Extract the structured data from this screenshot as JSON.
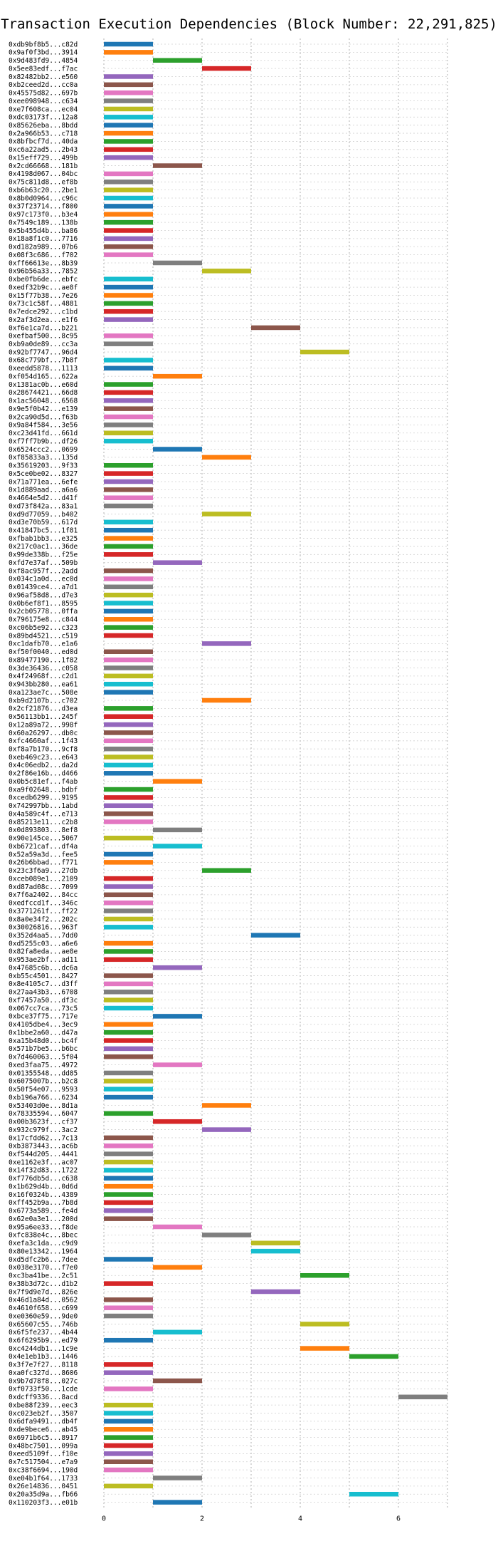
{
  "chart_data": {
    "type": "bar",
    "orientation": "horizontal",
    "title": "Transaction Execution Dependencies (Block Number: 22,291,825)",
    "xlabel": "",
    "ylabel": "",
    "xlim": [
      0,
      7
    ],
    "xticks": [
      0,
      2,
      4,
      6
    ],
    "grid": "x-dotted",
    "legend": "none",
    "palette": [
      "#1f77b4",
      "#ff7f0e",
      "#2ca02c",
      "#d62728",
      "#9467bd",
      "#8c564b",
      "#e377c2",
      "#7f7f7f",
      "#bcbd22",
      "#17becf"
    ],
    "bars": [
      {
        "label": "0xdb9bf8b5...c82d",
        "start": 0,
        "end": 1
      },
      {
        "label": "0x9af0f3bd...3914",
        "start": 0,
        "end": 1
      },
      {
        "label": "0x9d483fd9...4854",
        "start": 1,
        "end": 2
      },
      {
        "label": "0x5ee83edf...f7ac",
        "start": 2,
        "end": 3
      },
      {
        "label": "0x82482bb2...e560",
        "start": 0,
        "end": 1
      },
      {
        "label": "0xb2ceed2d...cc0a",
        "start": 0,
        "end": 1
      },
      {
        "label": "0x45575d82...697b",
        "start": 0,
        "end": 1
      },
      {
        "label": "0xee098948...c634",
        "start": 0,
        "end": 1
      },
      {
        "label": "0xe7f608ca...ec04",
        "start": 0,
        "end": 1
      },
      {
        "label": "0xdc03173f...12a8",
        "start": 0,
        "end": 1
      },
      {
        "label": "0x85626eba...8bdd",
        "start": 0,
        "end": 1
      },
      {
        "label": "0x2a966b53...c718",
        "start": 0,
        "end": 1
      },
      {
        "label": "0x8bfbcf7d...40da",
        "start": 0,
        "end": 1
      },
      {
        "label": "0xc6a22ad5...2b43",
        "start": 0,
        "end": 1
      },
      {
        "label": "0x15eff729...499b",
        "start": 0,
        "end": 1
      },
      {
        "label": "0x2cd66668...181b",
        "start": 1,
        "end": 2
      },
      {
        "label": "0x4198d067...04bc",
        "start": 0,
        "end": 1
      },
      {
        "label": "0x75c811d8...ef8b",
        "start": 0,
        "end": 1
      },
      {
        "label": "0xb6b63c20...2be1",
        "start": 0,
        "end": 1
      },
      {
        "label": "0x8b0d0964...c96c",
        "start": 0,
        "end": 1
      },
      {
        "label": "0x37f23714...f800",
        "start": 0,
        "end": 1
      },
      {
        "label": "0x97c173f0...b3e4",
        "start": 0,
        "end": 1
      },
      {
        "label": "0x7549c189...138b",
        "start": 0,
        "end": 1
      },
      {
        "label": "0x5b455d4b...ba86",
        "start": 0,
        "end": 1
      },
      {
        "label": "0x18a8f1c0...7716",
        "start": 0,
        "end": 1
      },
      {
        "label": "0xd182a989...07b6",
        "start": 0,
        "end": 1
      },
      {
        "label": "0x08f3c686...f702",
        "start": 0,
        "end": 1
      },
      {
        "label": "0xff66613e...8b39",
        "start": 1,
        "end": 2
      },
      {
        "label": "0x96b56a33...7852",
        "start": 2,
        "end": 3
      },
      {
        "label": "0xbe0fb6de...ebfc",
        "start": 0,
        "end": 1
      },
      {
        "label": "0xedf32b9c...ae8f",
        "start": 0,
        "end": 1
      },
      {
        "label": "0x15f77b38...7e26",
        "start": 0,
        "end": 1
      },
      {
        "label": "0x73c1c58f...4881",
        "start": 0,
        "end": 1
      },
      {
        "label": "0x7edce292...c1bd",
        "start": 0,
        "end": 1
      },
      {
        "label": "0x2af3d2ea...e1f6",
        "start": 0,
        "end": 1
      },
      {
        "label": "0xf6e1ca7d...b221",
        "start": 3,
        "end": 4
      },
      {
        "label": "0xefbaf500...8c95",
        "start": 0,
        "end": 1
      },
      {
        "label": "0xb9a0de89...cc3a",
        "start": 0,
        "end": 1
      },
      {
        "label": "0x92bf7747...96d4",
        "start": 4,
        "end": 5
      },
      {
        "label": "0x68c779bf...7b8f",
        "start": 0,
        "end": 1
      },
      {
        "label": "0xeedd5878...1113",
        "start": 0,
        "end": 1
      },
      {
        "label": "0xf054d165...622a",
        "start": 1,
        "end": 2
      },
      {
        "label": "0x1381ac0b...e60d",
        "start": 0,
        "end": 1
      },
      {
        "label": "0x28674421...66d8",
        "start": 0,
        "end": 1
      },
      {
        "label": "0x1ac56048...6568",
        "start": 0,
        "end": 1
      },
      {
        "label": "0x9e5f0b42...e139",
        "start": 0,
        "end": 1
      },
      {
        "label": "0x2ca90d5d...f63b",
        "start": 0,
        "end": 1
      },
      {
        "label": "0x9a84f584...3e56",
        "start": 0,
        "end": 1
      },
      {
        "label": "0xc23d41fd...661d",
        "start": 0,
        "end": 1
      },
      {
        "label": "0xf7ff7b9b...df26",
        "start": 0,
        "end": 1
      },
      {
        "label": "0x6524ccc2...0699",
        "start": 1,
        "end": 2
      },
      {
        "label": "0xf85833a3...135d",
        "start": 2,
        "end": 3
      },
      {
        "label": "0x35619203...9f33",
        "start": 0,
        "end": 1
      },
      {
        "label": "0x5ce0be02...8327",
        "start": 0,
        "end": 1
      },
      {
        "label": "0x71a771ea...6efe",
        "start": 0,
        "end": 1
      },
      {
        "label": "0x1d889aad...a6a6",
        "start": 0,
        "end": 1
      },
      {
        "label": "0x4664e5d2...d41f",
        "start": 0,
        "end": 1
      },
      {
        "label": "0xd73f842a...83a1",
        "start": 0,
        "end": 1
      },
      {
        "label": "0xd9d77059...b402",
        "start": 2,
        "end": 3
      },
      {
        "label": "0xd3e70b59...617d",
        "start": 0,
        "end": 1
      },
      {
        "label": "0x41847bc5...1f81",
        "start": 0,
        "end": 1
      },
      {
        "label": "0xfbab1bb3...e325",
        "start": 0,
        "end": 1
      },
      {
        "label": "0x217c0ac1...36de",
        "start": 0,
        "end": 1
      },
      {
        "label": "0x99de338b...f25e",
        "start": 0,
        "end": 1
      },
      {
        "label": "0xfd7e37af...509b",
        "start": 1,
        "end": 2
      },
      {
        "label": "0xf8ac957f...2add",
        "start": 0,
        "end": 1
      },
      {
        "label": "0x034c1a0d...ec0d",
        "start": 0,
        "end": 1
      },
      {
        "label": "0x01439ce4...a7d1",
        "start": 0,
        "end": 1
      },
      {
        "label": "0x96af58d8...d7e3",
        "start": 0,
        "end": 1
      },
      {
        "label": "0x0b6ef8f1...8595",
        "start": 0,
        "end": 1
      },
      {
        "label": "0x2cb05778...0ffa",
        "start": 0,
        "end": 1
      },
      {
        "label": "0x796175e8...c844",
        "start": 0,
        "end": 1
      },
      {
        "label": "0xc06b5e92...c323",
        "start": 0,
        "end": 1
      },
      {
        "label": "0x89bd4521...c519",
        "start": 0,
        "end": 1
      },
      {
        "label": "0xc1dafb70...e1a6",
        "start": 2,
        "end": 3
      },
      {
        "label": "0xf50f0040...ed0d",
        "start": 0,
        "end": 1
      },
      {
        "label": "0x89477190...1f82",
        "start": 0,
        "end": 1
      },
      {
        "label": "0x3de36436...c058",
        "start": 0,
        "end": 1
      },
      {
        "label": "0x4f24968f...c2d1",
        "start": 0,
        "end": 1
      },
      {
        "label": "0x943bb280...ea61",
        "start": 0,
        "end": 1
      },
      {
        "label": "0xa123ae7c...508e",
        "start": 0,
        "end": 1
      },
      {
        "label": "0xb9d2107b...c702",
        "start": 2,
        "end": 3
      },
      {
        "label": "0x2cf21876...d3ea",
        "start": 0,
        "end": 1
      },
      {
        "label": "0x56113bb1...245f",
        "start": 0,
        "end": 1
      },
      {
        "label": "0x12a89a72...998f",
        "start": 0,
        "end": 1
      },
      {
        "label": "0x60a26297...db0c",
        "start": 0,
        "end": 1
      },
      {
        "label": "0xfc4660af...1f43",
        "start": 0,
        "end": 1
      },
      {
        "label": "0xf8a7b170...9cf8",
        "start": 0,
        "end": 1
      },
      {
        "label": "0xeb469c23...e643",
        "start": 0,
        "end": 1
      },
      {
        "label": "0x4c06edb2...da2d",
        "start": 0,
        "end": 1
      },
      {
        "label": "0x2f86e16b...d466",
        "start": 0,
        "end": 1
      },
      {
        "label": "0x0b5c81ef...f4ab",
        "start": 1,
        "end": 2
      },
      {
        "label": "0xa9f02648...bdbf",
        "start": 0,
        "end": 1
      },
      {
        "label": "0xcedb6299...9195",
        "start": 0,
        "end": 1
      },
      {
        "label": "0x742997bb...1abd",
        "start": 0,
        "end": 1
      },
      {
        "label": "0x4a589c4f...e713",
        "start": 0,
        "end": 1
      },
      {
        "label": "0x85213e11...c2b8",
        "start": 0,
        "end": 1
      },
      {
        "label": "0x0d893803...8ef8",
        "start": 1,
        "end": 2
      },
      {
        "label": "0x90e145ce...5067",
        "start": 0,
        "end": 1
      },
      {
        "label": "0xb6721caf...df4a",
        "start": 1,
        "end": 2
      },
      {
        "label": "0x52a59a3d...fee5",
        "start": 0,
        "end": 1
      },
      {
        "label": "0x26b6bbad...f771",
        "start": 0,
        "end": 1
      },
      {
        "label": "0x23c3f6a9...27db",
        "start": 2,
        "end": 3
      },
      {
        "label": "0xceb089e1...2109",
        "start": 0,
        "end": 1
      },
      {
        "label": "0xd87ad08c...7099",
        "start": 0,
        "end": 1
      },
      {
        "label": "0x7f6a2402...84cc",
        "start": 0,
        "end": 1
      },
      {
        "label": "0xedfccd1f...346c",
        "start": 0,
        "end": 1
      },
      {
        "label": "0x3771261f...ff22",
        "start": 0,
        "end": 1
      },
      {
        "label": "0x8a0e34f2...202c",
        "start": 0,
        "end": 1
      },
      {
        "label": "0x30026816...963f",
        "start": 0,
        "end": 1
      },
      {
        "label": "0x352d4aa5...7dd0",
        "start": 3,
        "end": 4
      },
      {
        "label": "0xd5255c03...a6e6",
        "start": 0,
        "end": 1
      },
      {
        "label": "0x82fa8eda...ae8e",
        "start": 0,
        "end": 1
      },
      {
        "label": "0x953ae2bf...ad11",
        "start": 0,
        "end": 1
      },
      {
        "label": "0x47685c6b...dc6a",
        "start": 1,
        "end": 2
      },
      {
        "label": "0xb55c4501...8427",
        "start": 0,
        "end": 1
      },
      {
        "label": "0x8e4105c7...d3ff",
        "start": 0,
        "end": 1
      },
      {
        "label": "0x27aa43b3...6708",
        "start": 0,
        "end": 1
      },
      {
        "label": "0xf7457a50...df3c",
        "start": 0,
        "end": 1
      },
      {
        "label": "0x067cc7ca...73c5",
        "start": 0,
        "end": 1
      },
      {
        "label": "0xbce37f75...717e",
        "start": 1,
        "end": 2
      },
      {
        "label": "0x4105dbe4...3ec9",
        "start": 0,
        "end": 1
      },
      {
        "label": "0x1bbe2a60...d47a",
        "start": 0,
        "end": 1
      },
      {
        "label": "0xa15b48d0...bc4f",
        "start": 0,
        "end": 1
      },
      {
        "label": "0x571b7be5...b6bc",
        "start": 0,
        "end": 1
      },
      {
        "label": "0x7d460063...5f04",
        "start": 0,
        "end": 1
      },
      {
        "label": "0xed3faa75...4972",
        "start": 1,
        "end": 2
      },
      {
        "label": "0x01355548...dd85",
        "start": 0,
        "end": 1
      },
      {
        "label": "0x6075007b...b2c8",
        "start": 0,
        "end": 1
      },
      {
        "label": "0x50f54e07...9593",
        "start": 0,
        "end": 1
      },
      {
        "label": "0xb196a766...6234",
        "start": 0,
        "end": 1
      },
      {
        "label": "0x53403d0e...8d1a",
        "start": 2,
        "end": 3
      },
      {
        "label": "0x78335594...6047",
        "start": 0,
        "end": 1
      },
      {
        "label": "0x00b3623f...cf37",
        "start": 1,
        "end": 2
      },
      {
        "label": "0x932c979f...3ac2",
        "start": 2,
        "end": 3
      },
      {
        "label": "0x17cfdd62...7c13",
        "start": 0,
        "end": 1
      },
      {
        "label": "0xb3873443...ac6b",
        "start": 0,
        "end": 1
      },
      {
        "label": "0xf544d205...4441",
        "start": 0,
        "end": 1
      },
      {
        "label": "0xe1162e3f...ac07",
        "start": 0,
        "end": 1
      },
      {
        "label": "0x14f32d83...1722",
        "start": 0,
        "end": 1
      },
      {
        "label": "0xf776db5d...c638",
        "start": 0,
        "end": 1
      },
      {
        "label": "0x1b629d4b...0d6d",
        "start": 0,
        "end": 1
      },
      {
        "label": "0x16f0324b...4389",
        "start": 0,
        "end": 1
      },
      {
        "label": "0xff452b9a...7b8d",
        "start": 0,
        "end": 1
      },
      {
        "label": "0x6773a589...fe4d",
        "start": 0,
        "end": 1
      },
      {
        "label": "0x62e0a3e1...200d",
        "start": 0,
        "end": 1
      },
      {
        "label": "0x95a6ee33...f8de",
        "start": 1,
        "end": 2
      },
      {
        "label": "0xfc838e4c...8bec",
        "start": 2,
        "end": 3
      },
      {
        "label": "0xefa3c1da...c9d9",
        "start": 3,
        "end": 4
      },
      {
        "label": "0x80e13342...1964",
        "start": 3,
        "end": 4
      },
      {
        "label": "0xd5dfc2b6...7dee",
        "start": 0,
        "end": 1
      },
      {
        "label": "0x038e3170...f7e0",
        "start": 1,
        "end": 2
      },
      {
        "label": "0xc3ba41be...2c51",
        "start": 4,
        "end": 5
      },
      {
        "label": "0x38b3d72c...d1b2",
        "start": 0,
        "end": 1
      },
      {
        "label": "0x7f9d9e7d...826e",
        "start": 3,
        "end": 4
      },
      {
        "label": "0x46d1a84d...0562",
        "start": 0,
        "end": 1
      },
      {
        "label": "0x4610f658...c699",
        "start": 0,
        "end": 1
      },
      {
        "label": "0xe0360e59...9de0",
        "start": 0,
        "end": 1
      },
      {
        "label": "0x65607c55...746b",
        "start": 4,
        "end": 5
      },
      {
        "label": "0x6f5fe237...4b44",
        "start": 1,
        "end": 2
      },
      {
        "label": "0x6f6295b9...ed79",
        "start": 0,
        "end": 1
      },
      {
        "label": "0xc4244db1...1c9e",
        "start": 4,
        "end": 5
      },
      {
        "label": "0x4e1eb1b3...1446",
        "start": 5,
        "end": 6
      },
      {
        "label": "0x3f7e7f27...8118",
        "start": 0,
        "end": 1
      },
      {
        "label": "0xa0fc327d...8606",
        "start": 0,
        "end": 1
      },
      {
        "label": "0x9b7d78f8...027c",
        "start": 1,
        "end": 2
      },
      {
        "label": "0xf0733f50...1cde",
        "start": 0,
        "end": 1
      },
      {
        "label": "0xdcff9336...8acd",
        "start": 6,
        "end": 7
      },
      {
        "label": "0xbe88f239...eec3",
        "start": 0,
        "end": 1
      },
      {
        "label": "0xc023eb2f...3507",
        "start": 0,
        "end": 1
      },
      {
        "label": "0x6dfa9491...db4f",
        "start": 0,
        "end": 1
      },
      {
        "label": "0xde9bece6...ab45",
        "start": 0,
        "end": 1
      },
      {
        "label": "0x6971b6c5...8917",
        "start": 0,
        "end": 1
      },
      {
        "label": "0x48bc7501...099a",
        "start": 0,
        "end": 1
      },
      {
        "label": "0xeed5109f...f10e",
        "start": 0,
        "end": 1
      },
      {
        "label": "0x7c517504...e7a9",
        "start": 0,
        "end": 1
      },
      {
        "label": "0xc38f6694...190d",
        "start": 0,
        "end": 1
      },
      {
        "label": "0xe04b1f64...1733",
        "start": 1,
        "end": 2
      },
      {
        "label": "0x26e14836...0451",
        "start": 0,
        "end": 1
      },
      {
        "label": "0x20a35d9a...fb66",
        "start": 5,
        "end": 6
      },
      {
        "label": "0x110203f3...e01b",
        "start": 1,
        "end": 2
      }
    ]
  }
}
